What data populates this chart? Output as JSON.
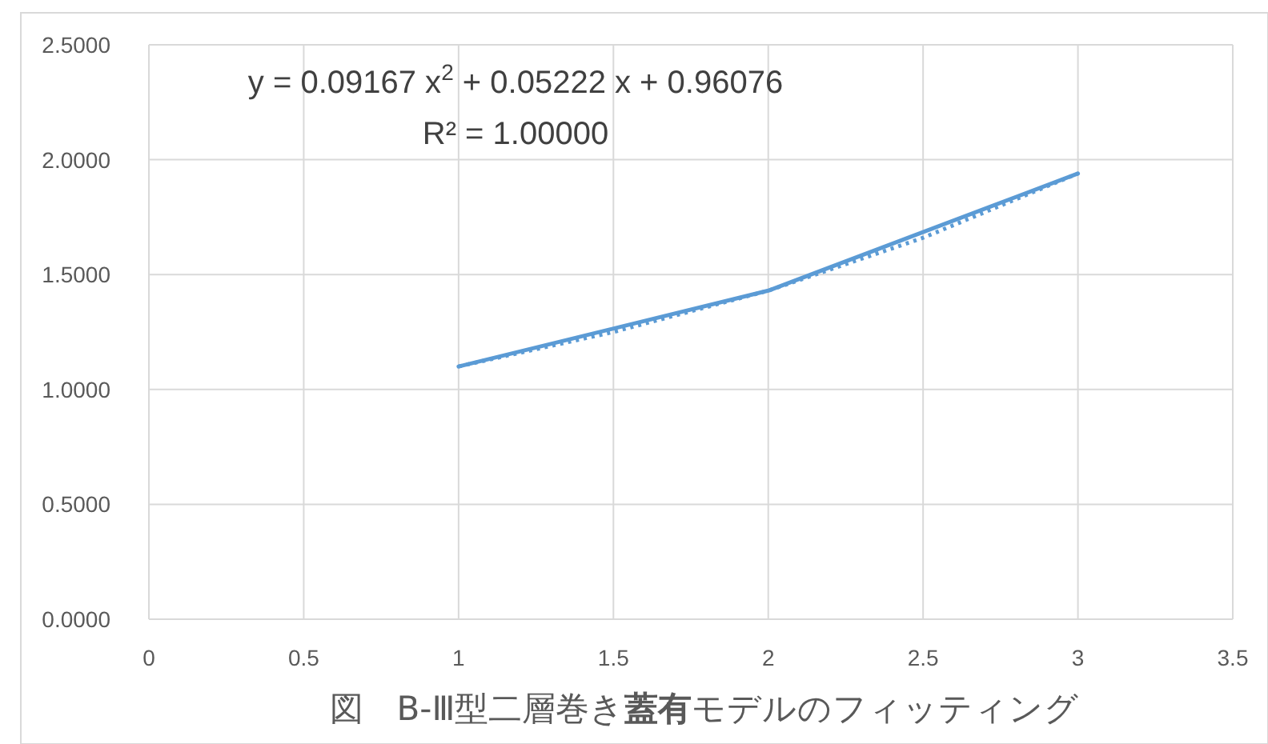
{
  "chart_data": {
    "type": "line",
    "title": "図　B-Ⅲ型二層巻き**蓋有**モデルのフィッティング",
    "annotations": [
      "y = 0.09167 x$^{2}$ + 0.05222 x + 0.96076",
      "R² = 1.00000"
    ],
    "series": [
      {
        "color": "#5b9bd5",
        "x": [
          1,
          2,
          3
        ],
        "values": [
          1.1,
          1.43,
          1.94
        ],
        "line_style": "solid"
      },
      {
        "type": "line",
        "color": "#5b9bd5",
        "x": [
          1,
          1.5,
          2,
          2.5,
          3
        ],
        "values": [
          1.1,
          1.25,
          1.43,
          1.66,
          1.94
        ],
        "line_style": "dotted"
      }
    ],
    "xlim": [
      0,
      3.5
    ],
    "xticks": [
      0,
      0.5,
      1,
      1.5,
      2,
      2.5,
      3,
      3.5
    ],
    "ylim": [
      0,
      2.5
    ],
    "yticks": [
      {
        "value": 0,
        "label": "0.0000"
      },
      {
        "value": 0.5,
        "label": "0.5000"
      },
      {
        "value": 1,
        "label": "1.0000"
      },
      {
        "value": 1.5,
        "label": "1.5000"
      },
      {
        "value": 2,
        "label": "2.0000"
      },
      {
        "value": 2.5,
        "label": "2.5000"
      }
    ],
    "grid": true,
    "marker": "none"
  }
}
